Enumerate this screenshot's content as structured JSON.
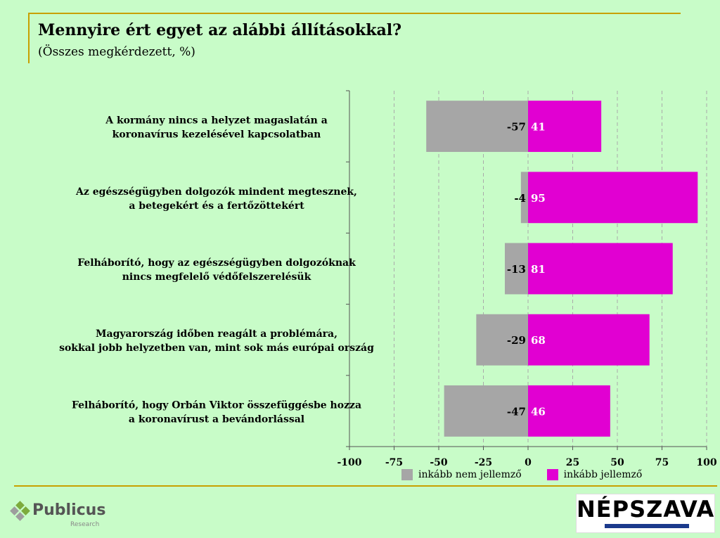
{
  "title": "Mennyire ért egyet az alábbi állításokkal?",
  "subtitle": "(Összes megkérdezett, %)",
  "chart_data": {
    "type": "bar",
    "orientation": "horizontal",
    "stacked": "diverging",
    "categories": [
      [
        "A kormány nincs a helyzet magaslatán a",
        "koronavírus kezelésével kapcsolatban"
      ],
      [
        "Az egészségügyben dolgozók mindent megtesznek,",
        "a betegekért és a fertőzöttekért"
      ],
      [
        "Felháborító, hogy az egészségügyben dolgozóknak",
        "nincs megfelelő védőfelszerelésük"
      ],
      [
        "Magyarország időben reagált a problémára,",
        "sokkal jobb helyzetben van, mint sok más európai ország"
      ],
      [
        "Felháborító, hogy Orbán Viktor összefüggésbe hozza",
        "a koronavírust a bevándorlással"
      ]
    ],
    "series": [
      {
        "name": "inkább nem jellemző",
        "color": "#a6a6a6",
        "values": [
          -57,
          -4,
          -13,
          -29,
          -47
        ]
      },
      {
        "name": "inkább jellemző",
        "color": "#e100d2",
        "values": [
          41,
          95,
          81,
          68,
          46
        ]
      }
    ],
    "xlim": [
      -100,
      100
    ],
    "xticks": [
      "-100",
      "-75",
      "-50",
      "-25",
      "0",
      "25",
      "50",
      "75",
      "100"
    ],
    "grid": true,
    "legend": "bottom"
  },
  "logos": {
    "publicus": {
      "name": "Publicus",
      "sub": "Research"
    },
    "nepszava": {
      "name": "NÉPSZAVA"
    }
  }
}
